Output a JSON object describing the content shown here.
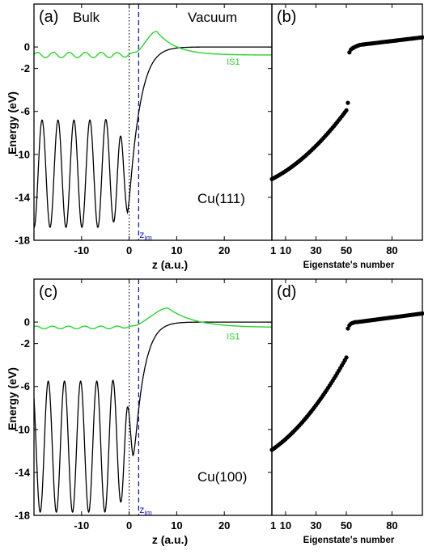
{
  "colors": {
    "bound_state": "#000000",
    "image_state": "#2ad42a",
    "image_plane": "#1515c8",
    "interface": "#000000"
  },
  "chart_data": [
    {
      "panel": "(a)",
      "type": "line",
      "material": "Cu(111)",
      "region_left": "Bulk",
      "region_right": "Vacuum",
      "xlabel": "z (a.u.)",
      "ylabel": "Energy (eV)",
      "xlim": [
        -20,
        30
      ],
      "ylim": [
        -18,
        4
      ],
      "xticks": [
        -10,
        0,
        10,
        20
      ],
      "yticks": [
        0,
        -2,
        -6,
        -10,
        -14,
        -18
      ],
      "interface_z": 0,
      "image_plane_z": 2.0,
      "image_plane_label": "z",
      "image_plane_sub": "im",
      "series": [
        {
          "name": "",
          "color": "#000000",
          "baseline": -11.8,
          "amplitude": 5.0,
          "period": 3.35,
          "phase_z": -18.3,
          "min_z": -0.35,
          "min_value": -15.5,
          "asymptote": 0.0,
          "decay": 5.5
        },
        {
          "name": "IS1",
          "color": "#2ad42a",
          "baseline": -0.75,
          "bulk_amplitude": 0.25,
          "period": 3.35,
          "peak_z": 5.8,
          "peak_value": 1.45,
          "trough_z": 1.2,
          "trough_value": -0.8,
          "decay": 4.0,
          "label_z": 20.5,
          "label_value": -1.35
        }
      ]
    },
    {
      "panel": "(b)",
      "type": "scatter",
      "xlabel": "Eigenstate's number",
      "xlim": [
        1,
        100
      ],
      "ylim": [
        -18,
        4
      ],
      "xticks": [
        1,
        10,
        30,
        50,
        80
      ],
      "tick_labels": [
        "1",
        "10",
        "30",
        "50",
        "80"
      ],
      "segments": [
        {
          "from": 1,
          "to": 50,
          "y_start": -12.3,
          "y_end": -5.9,
          "shape": "convex"
        },
        {
          "from": 51,
          "to": 51,
          "y_start": -5.2,
          "y_end": -5.2,
          "shape": "single"
        },
        {
          "from": 52,
          "to": 58,
          "y_start": -0.5,
          "y_end": 0.15,
          "shape": "rising"
        },
        {
          "from": 59,
          "to": 100,
          "y_start": 0.2,
          "y_end": 0.9,
          "shape": "linear"
        }
      ]
    },
    {
      "panel": "(c)",
      "type": "line",
      "material": "Cu(100)",
      "xlabel": "z (a.u.)",
      "ylabel": "Energy (eV)",
      "xlim": [
        -20,
        30
      ],
      "ylim": [
        -18,
        4
      ],
      "xticks": [
        -10,
        0,
        10,
        20
      ],
      "yticks": [
        0,
        -2,
        -6,
        -10,
        -14,
        -18
      ],
      "interface_z": 0,
      "image_plane_z": 2.0,
      "image_plane_label": "z",
      "image_plane_sub": "im",
      "series": [
        {
          "name": "",
          "color": "#000000",
          "baseline": -11.6,
          "amplitude": 6.1,
          "period": 3.4,
          "phase_z": -17.0,
          "min_z": 0.8,
          "min_value": -12.7,
          "asymptote": 0.0,
          "decay": 5.0
        },
        {
          "name": "IS1",
          "color": "#2ad42a",
          "baseline": -0.5,
          "bulk_amplitude": 0.12,
          "period": 3.4,
          "peak_z": 8.2,
          "peak_value": 1.3,
          "trough_z": 1.0,
          "trough_value": -0.6,
          "decay": 5.5,
          "label_z": 20.5,
          "label_value": -1.3
        }
      ]
    },
    {
      "panel": "(d)",
      "type": "scatter",
      "xlabel": "Eigenstate's number",
      "xlim": [
        1,
        100
      ],
      "ylim": [
        -18,
        4
      ],
      "xticks": [
        1,
        10,
        30,
        50,
        80
      ],
      "tick_labels": [
        "1",
        "10",
        "30",
        "50",
        "80"
      ],
      "segments": [
        {
          "from": 1,
          "to": 50,
          "y_start": -11.9,
          "y_end": -3.3,
          "shape": "convex"
        },
        {
          "from": 51,
          "to": 51,
          "y_start": -0.6,
          "y_end": -0.6,
          "shape": "single"
        },
        {
          "from": 52,
          "to": 56,
          "y_start": -0.3,
          "y_end": 0.0,
          "shape": "rising"
        },
        {
          "from": 57,
          "to": 100,
          "y_start": 0.0,
          "y_end": 0.8,
          "shape": "linear"
        }
      ]
    }
  ]
}
